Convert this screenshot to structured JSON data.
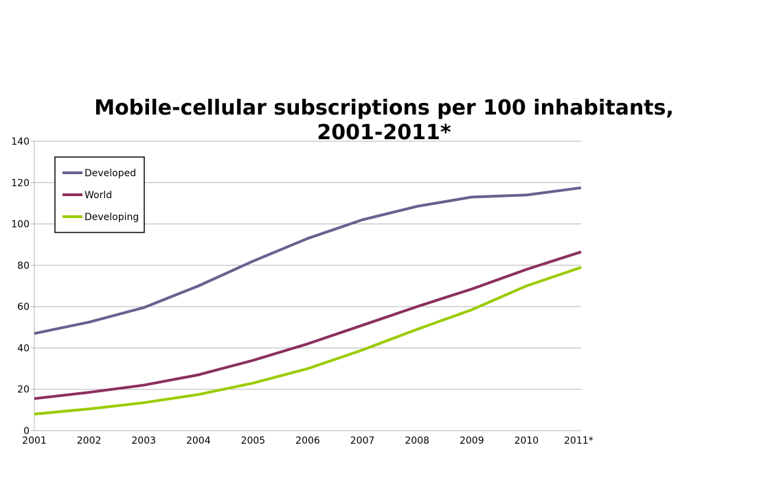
{
  "chart_data": {
    "type": "line",
    "title_line1": "Mobile-cellular subscriptions per 100 inhabitants,",
    "title_line2": "2001-2011*",
    "xlabel": "",
    "ylabel": "",
    "categories": [
      "2001",
      "2002",
      "2003",
      "2004",
      "2005",
      "2006",
      "2007",
      "2008",
      "2009",
      "2010",
      "2011*"
    ],
    "ylim": [
      0,
      140
    ],
    "yticks": [
      0,
      20,
      40,
      60,
      80,
      100,
      120,
      140
    ],
    "grid": true,
    "legend_position": "top-left",
    "series": [
      {
        "name": "Developed",
        "color": "#66628f",
        "values": [
          47,
          52.5,
          59.5,
          70,
          82,
          93,
          102,
          108.5,
          113,
          114,
          117.5
        ]
      },
      {
        "name": "World",
        "color": "#8b2f5e",
        "values": [
          15.5,
          18.5,
          22,
          27,
          34,
          42,
          51,
          60,
          68.5,
          78,
          86.5
        ]
      },
      {
        "name": "Developing",
        "color": "#99cc00",
        "values": [
          8,
          10.5,
          13.5,
          17.5,
          23,
          30,
          39,
          49,
          58.5,
          70,
          79
        ]
      }
    ]
  }
}
